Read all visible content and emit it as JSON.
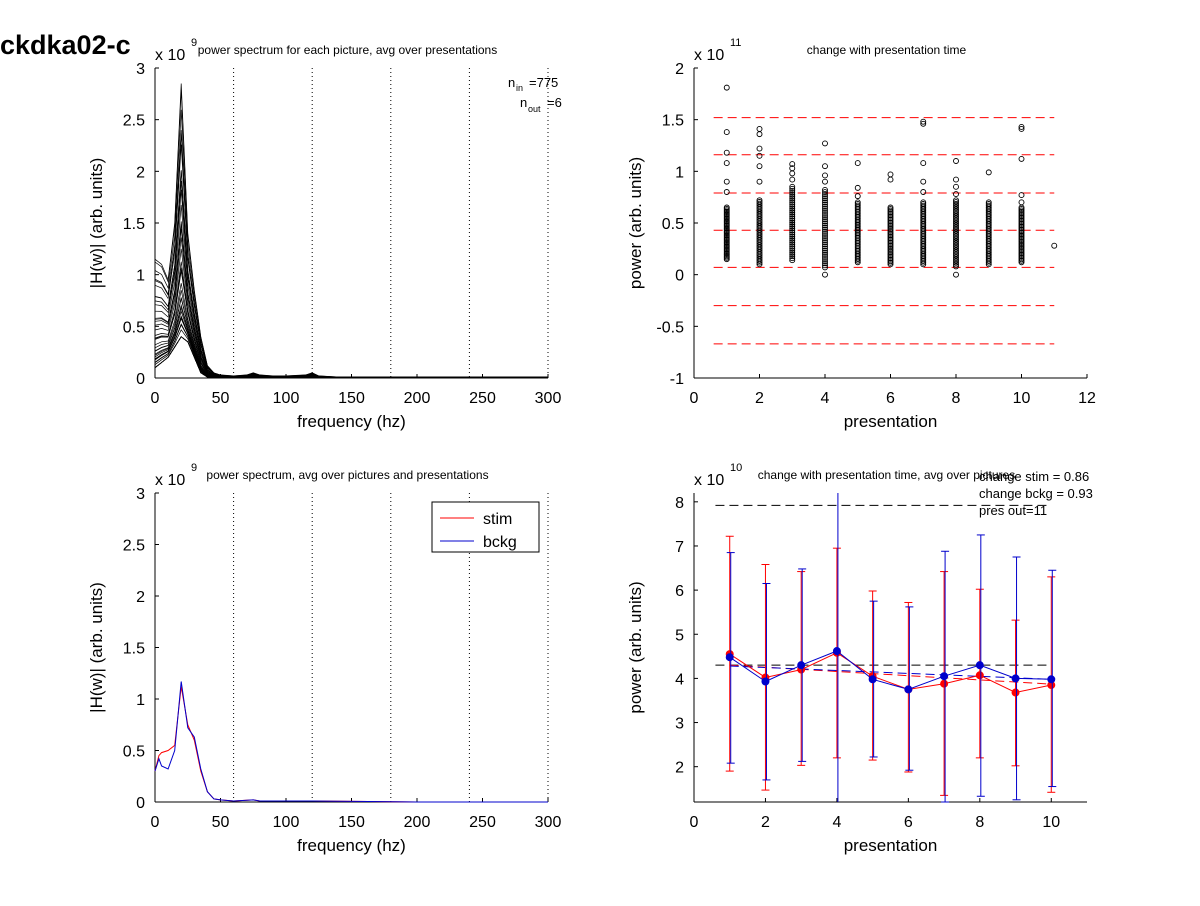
{
  "figure_title": "ckdka02-c",
  "chart_data": [
    {
      "id": "p1",
      "type": "line",
      "title": "power spectrum for each picture, avg over presentations",
      "xlabel": "frequency (hz)",
      "ylabel": "|H(w)| (arb. units)",
      "xlim": [
        0,
        300
      ],
      "ylim": [
        0,
        3
      ],
      "y_exponent_label": "x 10",
      "y_exponent": "9",
      "xticks": [
        0,
        50,
        100,
        150,
        200,
        250,
        300
      ],
      "yticks": [
        0,
        0.5,
        1,
        1.5,
        2,
        2.5,
        3
      ],
      "ytick_labels": [
        "0",
        "0.5",
        "1",
        "1.5",
        "2",
        "2.5",
        "3"
      ],
      "vlines": [
        60,
        120,
        180,
        240,
        300
      ],
      "annotation": {
        "n_in_label": "n",
        "n_in_sub": "in",
        "n_in_value": "=775",
        "n_out_label": "n",
        "n_out_sub": "out",
        "n_out_value": "=6"
      },
      "x": [
        0,
        5,
        10,
        15,
        20,
        25,
        30,
        35,
        40,
        45,
        50,
        60,
        70,
        75,
        80,
        90,
        100,
        115,
        120,
        125,
        140,
        160,
        200,
        250,
        300
      ],
      "series_envelope": {
        "upper": [
          1.15,
          1.1,
          0.95,
          1.5,
          2.85,
          1.4,
          0.85,
          0.4,
          0.12,
          0.05,
          0.03,
          0.02,
          0.03,
          0.05,
          0.03,
          0.02,
          0.02,
          0.03,
          0.05,
          0.02,
          0.01,
          0.01,
          0.01,
          0.01,
          0.01
        ],
        "lower": [
          0.1,
          0.15,
          0.2,
          0.3,
          0.4,
          0.35,
          0.2,
          0.05,
          0.01,
          0,
          0,
          0,
          0,
          0,
          0,
          0,
          0,
          0,
          0,
          0,
          0,
          0,
          0,
          0,
          0
        ]
      },
      "series_count": 40,
      "color": "#000000"
    },
    {
      "id": "p2",
      "type": "scatter",
      "title": "change with presentation time",
      "xlabel": "presentation",
      "ylabel": "power (arb. units)",
      "xlim": [
        0,
        12
      ],
      "ylim": [
        -1,
        2
      ],
      "y_exponent_label": "x 10",
      "y_exponent": "11",
      "xticks": [
        0,
        2,
        4,
        6,
        8,
        10,
        12
      ],
      "yticks": [
        -1,
        -0.5,
        0,
        0.5,
        1,
        1.5,
        2
      ],
      "ytick_labels": [
        "-1",
        "-0.5",
        "0",
        "0.5",
        "1",
        "1.5",
        "2"
      ],
      "hlines": [
        1.52,
        1.16,
        0.79,
        0.43,
        0.07,
        -0.3,
        -0.67
      ],
      "hline_color": "#ff0000",
      "columns": [
        {
          "x": 1,
          "low": 0.15,
          "high": 0.65,
          "outliers": [
            0.8,
            0.9,
            1.08,
            1.18,
            1.38,
            1.81
          ]
        },
        {
          "x": 2,
          "low": 0.1,
          "high": 0.72,
          "outliers": [
            0.9,
            1.05,
            1.15,
            1.22,
            1.36,
            1.41
          ]
        },
        {
          "x": 3,
          "low": 0.14,
          "high": 0.85,
          "outliers": [
            0.92,
            0.98,
            1.03,
            1.07
          ]
        },
        {
          "x": 4,
          "low": 0.07,
          "high": 0.82,
          "outliers": [
            0.0,
            0.9,
            0.96,
            1.05,
            1.27
          ]
        },
        {
          "x": 5,
          "low": 0.12,
          "high": 0.7,
          "outliers": [
            0.76,
            0.84,
            1.08
          ]
        },
        {
          "x": 6,
          "low": 0.1,
          "high": 0.65,
          "outliers": [
            0.92,
            0.97
          ]
        },
        {
          "x": 7,
          "low": 0.1,
          "high": 0.7,
          "outliers": [
            0.8,
            0.9,
            1.08,
            1.46,
            1.48
          ]
        },
        {
          "x": 8,
          "low": 0.08,
          "high": 0.72,
          "outliers": [
            0.0,
            0.78,
            0.85,
            0.92,
            1.1
          ]
        },
        {
          "x": 9,
          "low": 0.1,
          "high": 0.7,
          "outliers": [
            0.99
          ]
        },
        {
          "x": 10,
          "low": 0.12,
          "high": 0.65,
          "outliers": [
            0.7,
            0.77,
            1.12,
            1.41,
            1.43
          ]
        },
        {
          "x": 11,
          "low": 0.28,
          "high": 0.28,
          "outliers": []
        }
      ]
    },
    {
      "id": "p3",
      "type": "line",
      "title": "power spectrum, avg over pictures and presentations",
      "xlabel": "frequency (hz)",
      "ylabel": "|H(w)| (arb. units)",
      "xlim": [
        0,
        300
      ],
      "ylim": [
        0,
        3
      ],
      "y_exponent_label": "x 10",
      "y_exponent": "9",
      "xticks": [
        0,
        50,
        100,
        150,
        200,
        250,
        300
      ],
      "yticks": [
        0,
        0.5,
        1,
        1.5,
        2,
        2.5,
        3
      ],
      "ytick_labels": [
        "0",
        "0.5",
        "1",
        "1.5",
        "2",
        "2.5",
        "3"
      ],
      "vlines": [
        60,
        120,
        180,
        240,
        300
      ],
      "legend": "top-right",
      "series": [
        {
          "name": "stim",
          "color": "#ff0000",
          "x": [
            0,
            3,
            5,
            10,
            15,
            20,
            25,
            30,
            35,
            40,
            45,
            50,
            60,
            75,
            80,
            120,
            200,
            300
          ],
          "y": [
            0.3,
            0.45,
            0.48,
            0.5,
            0.55,
            1.12,
            0.75,
            0.6,
            0.3,
            0.1,
            0.03,
            0.02,
            0.01,
            0.02,
            0.01,
            0.01,
            0,
            0
          ]
        },
        {
          "name": "bckg",
          "color": "#0000cc",
          "x": [
            0,
            3,
            5,
            10,
            15,
            20,
            25,
            30,
            35,
            40,
            45,
            50,
            60,
            75,
            80,
            120,
            200,
            300
          ],
          "y": [
            0.3,
            0.42,
            0.35,
            0.32,
            0.5,
            1.17,
            0.72,
            0.63,
            0.32,
            0.1,
            0.03,
            0.02,
            0.01,
            0.02,
            0.01,
            0.01,
            0,
            0
          ]
        }
      ]
    },
    {
      "id": "p4",
      "type": "line",
      "title": "change with presentation time, avg over pictures",
      "xlabel": "presentation",
      "ylabel": "power (arb. units)",
      "xlim": [
        0,
        11
      ],
      "ylim": [
        1.2,
        8.2
      ],
      "y_exponent_label": "x 10",
      "y_exponent": "10",
      "xticks": [
        0,
        2,
        4,
        6,
        8,
        10
      ],
      "yticks": [
        2,
        3,
        4,
        5,
        6,
        7,
        8
      ],
      "ytick_labels": [
        "2",
        "3",
        "4",
        "5",
        "6",
        "7",
        "8"
      ],
      "hlines": [
        7.92,
        4.3
      ],
      "annotation": [
        "change stim = 0.86",
        "change bckg = 0.93",
        "pres out=11"
      ],
      "trend": {
        "stim": {
          "x": [
            1,
            10
          ],
          "y": [
            4.3,
            3.87
          ]
        },
        "bckg": {
          "x": [
            1,
            10
          ],
          "y": [
            4.28,
            3.98
          ]
        }
      },
      "series": [
        {
          "name": "stim",
          "color": "#ff0000",
          "x": [
            1,
            2,
            3,
            4,
            5,
            6,
            7,
            8,
            9,
            10
          ],
          "y": [
            4.55,
            4.02,
            4.2,
            4.58,
            4.05,
            3.75,
            3.88,
            4.07,
            3.68,
            3.85
          ],
          "err_low": [
            1.9,
            1.47,
            2.03,
            2.2,
            2.15,
            1.88,
            1.35,
            2.2,
            2.02,
            1.42
          ],
          "err_high": [
            7.22,
            6.58,
            6.42,
            6.95,
            5.98,
            5.72,
            6.42,
            6.02,
            5.32,
            6.3
          ]
        },
        {
          "name": "bckg",
          "color": "#0000cc",
          "x": [
            1,
            2,
            3,
            4,
            5,
            6,
            7,
            8,
            9,
            10
          ],
          "y": [
            4.48,
            3.93,
            4.3,
            4.62,
            3.98,
            3.75,
            4.05,
            4.3,
            4.0,
            3.98
          ],
          "err_low": [
            2.08,
            1.7,
            2.12,
            1.0,
            2.22,
            1.92,
            1.2,
            1.33,
            1.25,
            1.55
          ],
          "err_high": [
            6.85,
            6.15,
            6.48,
            8.25,
            5.75,
            5.62,
            6.88,
            7.25,
            6.75,
            6.45
          ]
        }
      ]
    }
  ]
}
